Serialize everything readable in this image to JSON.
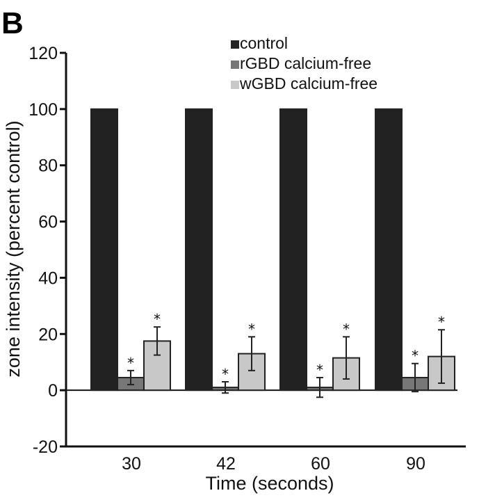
{
  "panel_label": "B",
  "chart_data": {
    "type": "bar",
    "xlabel": "Time (seconds)",
    "ylabel": "zone intensity (percent control)",
    "ylim": [
      -20,
      120
    ],
    "yticks": [
      -20,
      0,
      20,
      40,
      60,
      80,
      100,
      120
    ],
    "categories": [
      "30",
      "42",
      "60",
      "90"
    ],
    "legend_position": "top-right",
    "significance_marker": "*",
    "series": [
      {
        "name": "control",
        "color": "#222222",
        "values": [
          100,
          100,
          100,
          100
        ],
        "errors": [
          0,
          0,
          0,
          0
        ],
        "significant": [
          false,
          false,
          false,
          false
        ]
      },
      {
        "name": "rGBD calcium-free",
        "color": "#777777",
        "values": [
          4.5,
          1,
          1,
          4.5
        ],
        "errors": [
          2.5,
          2,
          3.5,
          5
        ],
        "significant": [
          true,
          true,
          true,
          true
        ]
      },
      {
        "name": "wGBD calcium-free",
        "color": "#c8c8c8",
        "values": [
          17.5,
          13,
          11.5,
          12
        ],
        "errors": [
          5,
          6,
          7.5,
          9.5
        ],
        "significant": [
          true,
          true,
          true,
          true
        ]
      }
    ]
  }
}
